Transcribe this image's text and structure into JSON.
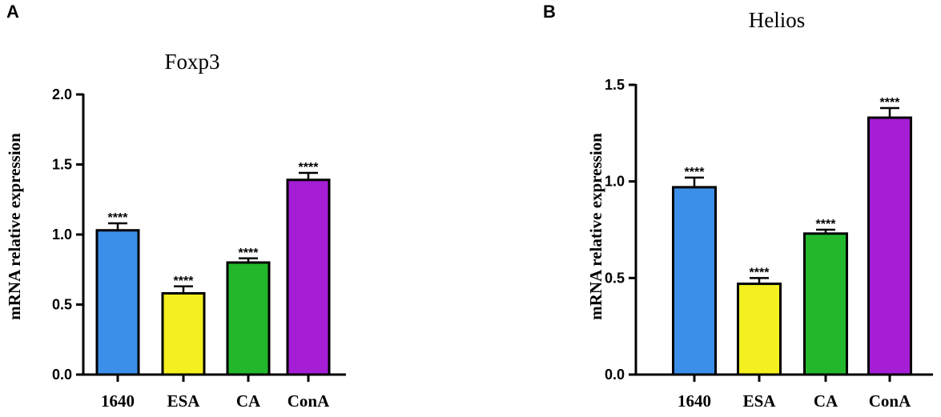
{
  "chart_data": [
    {
      "panel": "A",
      "type": "bar",
      "title": "Foxp3",
      "xlabel": "",
      "ylabel": "mRNA relative expression",
      "categories": [
        "1640",
        "ESA",
        "CA",
        "ConA"
      ],
      "values": [
        1.03,
        0.58,
        0.8,
        1.39
      ],
      "errors": [
        0.05,
        0.05,
        0.03,
        0.05
      ],
      "annotations": [
        "****",
        "****",
        "****",
        "****"
      ],
      "colors": [
        "#3b8fe8",
        "#f4f020",
        "#23b82c",
        "#a51ed6"
      ],
      "ylim": [
        0,
        2.0
      ],
      "yticks": [
        0.0,
        0.5,
        1.0,
        1.5,
        2.0
      ],
      "ytick_labels": [
        "0.0",
        "0.5",
        "1.0",
        "1.5",
        "2.0"
      ],
      "grid": false
    },
    {
      "panel": "B",
      "type": "bar",
      "title": "Helios",
      "xlabel": "",
      "ylabel": "mRNA relative expression",
      "categories": [
        "1640",
        "ESA",
        "CA",
        "ConA"
      ],
      "values": [
        0.97,
        0.47,
        0.73,
        1.33
      ],
      "errors": [
        0.05,
        0.03,
        0.02,
        0.05
      ],
      "annotations": [
        "****",
        "****",
        "****",
        "****"
      ],
      "colors": [
        "#3b8fe8",
        "#f4f020",
        "#23b82c",
        "#a51ed6"
      ],
      "ylim": [
        0,
        1.5
      ],
      "yticks": [
        0.0,
        0.5,
        1.0,
        1.5
      ],
      "ytick_labels": [
        "0.0",
        "0.5",
        "1.0",
        "1.5"
      ],
      "grid": false
    }
  ]
}
